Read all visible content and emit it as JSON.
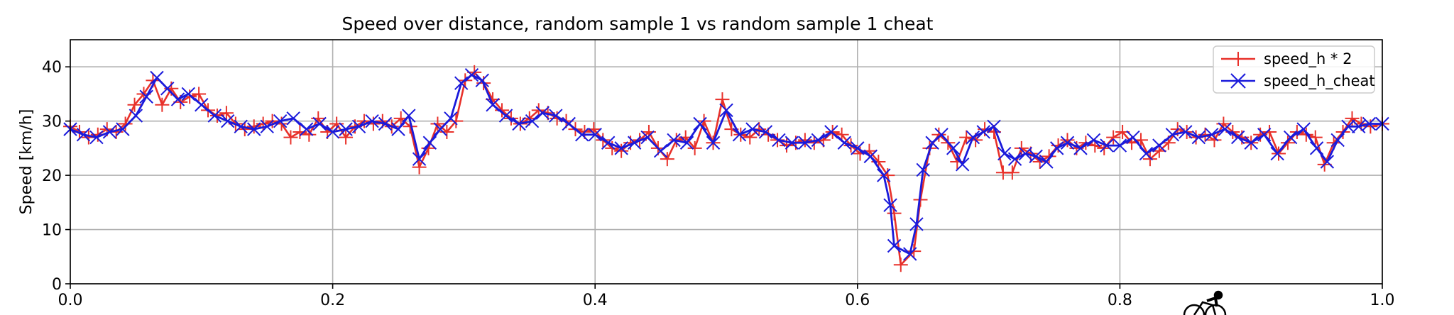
{
  "chart_data": {
    "type": "line",
    "title": "Speed over distance, random sample 1 vs random sample 1 cheat",
    "xlabel": "",
    "ylabel": "Speed [km/h]",
    "xlim": [
      0.0,
      1.0
    ],
    "ylim": [
      0,
      45
    ],
    "xticks": [
      "0.0",
      "0.2",
      "0.4",
      "0.6",
      "0.8",
      "1.0"
    ],
    "yticks": [
      "0",
      "10",
      "20",
      "30",
      "40"
    ],
    "grid": true,
    "legend_position": "top-right",
    "series": [
      {
        "name": "speed_h * 2",
        "color": "#e8312a",
        "marker": "plus",
        "points": [
          [
            0.0,
            29
          ],
          [
            0.007,
            28
          ],
          [
            0.014,
            27
          ],
          [
            0.021,
            27.5
          ],
          [
            0.028,
            28.5
          ],
          [
            0.035,
            28
          ],
          [
            0.042,
            29.5
          ],
          [
            0.049,
            33
          ],
          [
            0.056,
            35
          ],
          [
            0.063,
            37.5
          ],
          [
            0.07,
            33
          ],
          [
            0.077,
            36
          ],
          [
            0.084,
            33.5
          ],
          [
            0.091,
            34.5
          ],
          [
            0.098,
            35
          ],
          [
            0.105,
            32
          ],
          [
            0.112,
            31
          ],
          [
            0.119,
            31.5
          ],
          [
            0.126,
            29.5
          ],
          [
            0.133,
            28.5
          ],
          [
            0.14,
            29
          ],
          [
            0.147,
            29.5
          ],
          [
            0.154,
            30
          ],
          [
            0.161,
            29.5
          ],
          [
            0.168,
            27
          ],
          [
            0.175,
            28
          ],
          [
            0.182,
            27.5
          ],
          [
            0.189,
            30.5
          ],
          [
            0.196,
            28
          ],
          [
            0.203,
            29.5
          ],
          [
            0.21,
            27
          ],
          [
            0.217,
            29
          ],
          [
            0.224,
            30
          ],
          [
            0.231,
            29.5
          ],
          [
            0.238,
            30
          ],
          [
            0.245,
            29
          ],
          [
            0.252,
            30.5
          ],
          [
            0.259,
            29
          ],
          [
            0.266,
            21.5
          ],
          [
            0.273,
            25
          ],
          [
            0.28,
            29.5
          ],
          [
            0.287,
            28
          ],
          [
            0.294,
            30
          ],
          [
            0.301,
            37.5
          ],
          [
            0.308,
            39
          ],
          [
            0.315,
            37
          ],
          [
            0.322,
            34
          ],
          [
            0.329,
            32
          ],
          [
            0.336,
            30.5
          ],
          [
            0.343,
            29.5
          ],
          [
            0.35,
            30.5
          ],
          [
            0.357,
            32
          ],
          [
            0.364,
            31.5
          ],
          [
            0.371,
            30.5
          ],
          [
            0.378,
            30
          ],
          [
            0.385,
            28.5
          ],
          [
            0.392,
            28
          ],
          [
            0.399,
            28.5
          ],
          [
            0.406,
            26.5
          ],
          [
            0.413,
            25
          ],
          [
            0.42,
            24.5
          ],
          [
            0.427,
            26
          ],
          [
            0.434,
            26.5
          ],
          [
            0.441,
            28
          ],
          [
            0.448,
            25
          ],
          [
            0.455,
            23
          ],
          [
            0.462,
            26.5
          ],
          [
            0.469,
            27
          ],
          [
            0.476,
            25
          ],
          [
            0.483,
            30
          ],
          [
            0.49,
            26
          ],
          [
            0.497,
            34
          ],
          [
            0.504,
            28.5
          ],
          [
            0.511,
            27.5
          ],
          [
            0.518,
            27
          ],
          [
            0.525,
            28.5
          ],
          [
            0.532,
            27.5
          ],
          [
            0.539,
            26.5
          ],
          [
            0.546,
            25.5
          ],
          [
            0.553,
            26
          ],
          [
            0.56,
            26.5
          ],
          [
            0.567,
            26
          ],
          [
            0.574,
            26.5
          ],
          [
            0.581,
            28
          ],
          [
            0.588,
            27.5
          ],
          [
            0.595,
            25.5
          ],
          [
            0.602,
            24
          ],
          [
            0.609,
            24.5
          ],
          [
            0.616,
            22.5
          ],
          [
            0.623,
            20
          ],
          [
            0.628,
            13
          ],
          [
            0.633,
            3.5
          ],
          [
            0.643,
            6
          ],
          [
            0.648,
            15.5
          ],
          [
            0.655,
            25
          ],
          [
            0.662,
            27.5
          ],
          [
            0.669,
            26
          ],
          [
            0.676,
            22.5
          ],
          [
            0.683,
            27
          ],
          [
            0.69,
            26.5
          ],
          [
            0.697,
            28.5
          ],
          [
            0.704,
            28
          ],
          [
            0.711,
            20.5
          ],
          [
            0.718,
            20.5
          ],
          [
            0.725,
            25
          ],
          [
            0.732,
            24
          ],
          [
            0.739,
            22.5
          ],
          [
            0.746,
            23.5
          ],
          [
            0.753,
            25.5
          ],
          [
            0.76,
            26.5
          ],
          [
            0.767,
            25
          ],
          [
            0.774,
            26
          ],
          [
            0.781,
            25.5
          ],
          [
            0.788,
            25
          ],
          [
            0.795,
            27
          ],
          [
            0.802,
            28
          ],
          [
            0.809,
            26
          ],
          [
            0.816,
            26.5
          ],
          [
            0.823,
            23
          ],
          [
            0.83,
            24.5
          ],
          [
            0.837,
            26
          ],
          [
            0.844,
            28.5
          ],
          [
            0.851,
            28
          ],
          [
            0.858,
            27
          ],
          [
            0.865,
            27.5
          ],
          [
            0.872,
            26.5
          ],
          [
            0.879,
            29.5
          ],
          [
            0.886,
            28
          ],
          [
            0.893,
            27
          ],
          [
            0.9,
            26
          ],
          [
            0.907,
            27.5
          ],
          [
            0.914,
            28
          ],
          [
            0.921,
            24
          ],
          [
            0.928,
            26
          ],
          [
            0.935,
            28
          ],
          [
            0.942,
            27.5
          ],
          [
            0.949,
            27
          ],
          [
            0.956,
            22
          ],
          [
            0.963,
            26
          ],
          [
            0.97,
            28
          ],
          [
            0.977,
            30.5
          ],
          [
            0.984,
            29.5
          ],
          [
            0.991,
            29
          ],
          [
            1.0,
            29.5
          ]
        ]
      },
      {
        "name": "speed_h_cheat",
        "color": "#1a1adb",
        "marker": "x",
        "points": [
          [
            0.0,
            28.5
          ],
          [
            0.01,
            27.5
          ],
          [
            0.02,
            27
          ],
          [
            0.03,
            28
          ],
          [
            0.04,
            28.5
          ],
          [
            0.05,
            31
          ],
          [
            0.058,
            34.5
          ],
          [
            0.066,
            38
          ],
          [
            0.074,
            36
          ],
          [
            0.082,
            34
          ],
          [
            0.09,
            35
          ],
          [
            0.1,
            33
          ],
          [
            0.11,
            31
          ],
          [
            0.12,
            30
          ],
          [
            0.13,
            29
          ],
          [
            0.14,
            28.5
          ],
          [
            0.15,
            29
          ],
          [
            0.16,
            30
          ],
          [
            0.17,
            30.5
          ],
          [
            0.18,
            28.5
          ],
          [
            0.19,
            29.5
          ],
          [
            0.2,
            28
          ],
          [
            0.21,
            28.5
          ],
          [
            0.22,
            29
          ],
          [
            0.23,
            30
          ],
          [
            0.24,
            29.5
          ],
          [
            0.25,
            28.5
          ],
          [
            0.258,
            31
          ],
          [
            0.266,
            23
          ],
          [
            0.274,
            26
          ],
          [
            0.282,
            28.5
          ],
          [
            0.29,
            30.5
          ],
          [
            0.298,
            37
          ],
          [
            0.306,
            38.5
          ],
          [
            0.314,
            37.5
          ],
          [
            0.322,
            33
          ],
          [
            0.332,
            31
          ],
          [
            0.342,
            29.5
          ],
          [
            0.352,
            30
          ],
          [
            0.36,
            31.5
          ],
          [
            0.37,
            31
          ],
          [
            0.38,
            29.5
          ],
          [
            0.39,
            27.5
          ],
          [
            0.4,
            27.5
          ],
          [
            0.41,
            26
          ],
          [
            0.42,
            25
          ],
          [
            0.43,
            26
          ],
          [
            0.44,
            27
          ],
          [
            0.45,
            24.5
          ],
          [
            0.46,
            26.5
          ],
          [
            0.47,
            26
          ],
          [
            0.48,
            29.5
          ],
          [
            0.49,
            26
          ],
          [
            0.5,
            32
          ],
          [
            0.51,
            27.5
          ],
          [
            0.52,
            28.5
          ],
          [
            0.53,
            28
          ],
          [
            0.54,
            26.5
          ],
          [
            0.55,
            26
          ],
          [
            0.56,
            26
          ],
          [
            0.57,
            26.5
          ],
          [
            0.58,
            28
          ],
          [
            0.59,
            26
          ],
          [
            0.6,
            25
          ],
          [
            0.61,
            23.5
          ],
          [
            0.62,
            20
          ],
          [
            0.625,
            14.5
          ],
          [
            0.628,
            7
          ],
          [
            0.64,
            5.5
          ],
          [
            0.645,
            11
          ],
          [
            0.65,
            21
          ],
          [
            0.657,
            26
          ],
          [
            0.664,
            27.5
          ],
          [
            0.673,
            25
          ],
          [
            0.68,
            22
          ],
          [
            0.688,
            27
          ],
          [
            0.696,
            28
          ],
          [
            0.704,
            29
          ],
          [
            0.712,
            24
          ],
          [
            0.72,
            23
          ],
          [
            0.728,
            24
          ],
          [
            0.736,
            23.5
          ],
          [
            0.744,
            22.5
          ],
          [
            0.752,
            25
          ],
          [
            0.76,
            26
          ],
          [
            0.77,
            25
          ],
          [
            0.78,
            26.5
          ],
          [
            0.79,
            25.5
          ],
          [
            0.8,
            25.5
          ],
          [
            0.81,
            27
          ],
          [
            0.82,
            24
          ],
          [
            0.83,
            25.5
          ],
          [
            0.84,
            27.5
          ],
          [
            0.85,
            28
          ],
          [
            0.86,
            27
          ],
          [
            0.87,
            27.5
          ],
          [
            0.88,
            28.5
          ],
          [
            0.89,
            27
          ],
          [
            0.9,
            26
          ],
          [
            0.91,
            27.5
          ],
          [
            0.92,
            24
          ],
          [
            0.93,
            27
          ],
          [
            0.94,
            28.5
          ],
          [
            0.95,
            25
          ],
          [
            0.958,
            22.5
          ],
          [
            0.966,
            26.5
          ],
          [
            0.974,
            29
          ],
          [
            0.982,
            29
          ],
          [
            0.99,
            29.5
          ],
          [
            1.0,
            29.5
          ]
        ]
      }
    ]
  }
}
